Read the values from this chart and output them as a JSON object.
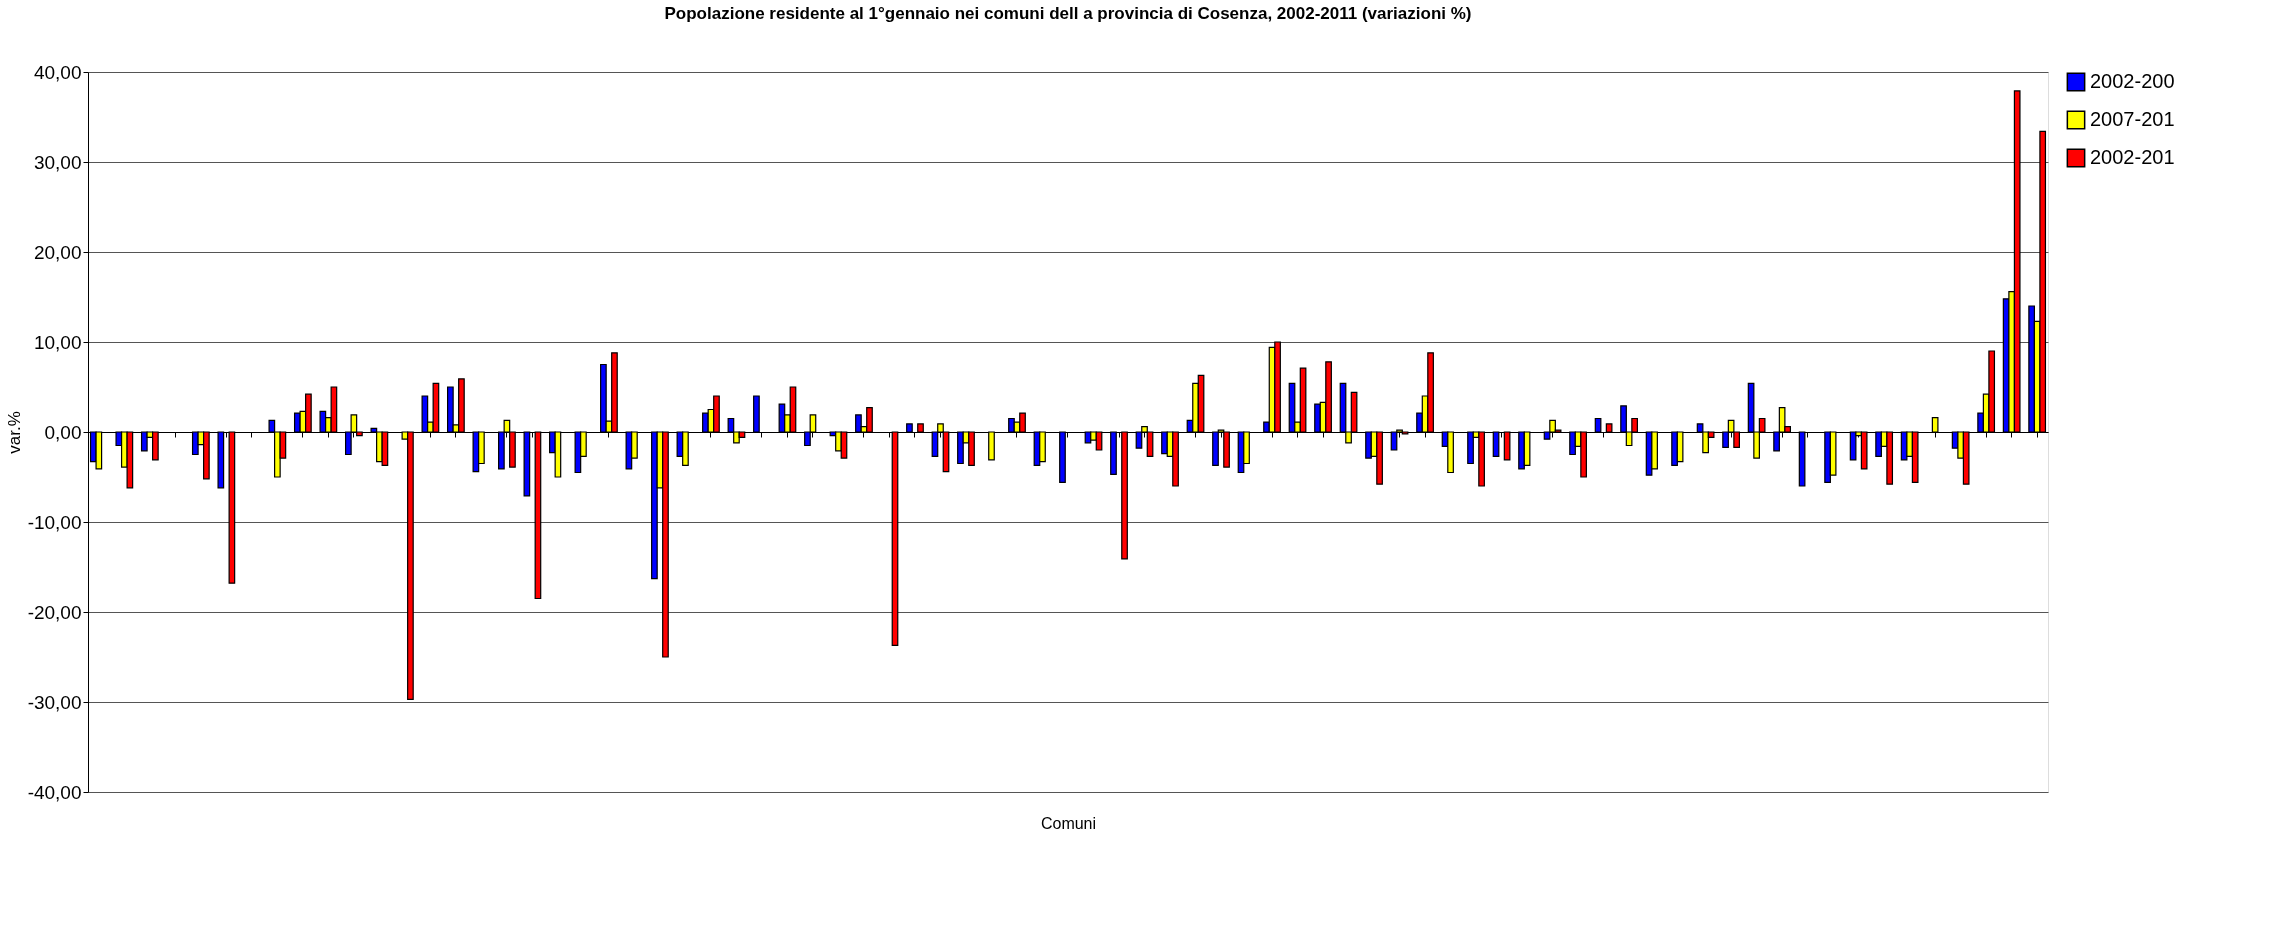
{
  "chart_data": {
    "type": "bar",
    "title": "Popolazione residente al 1°gennaio nei comuni dell a provincia di Cosenza, 2002-2011 (variazioni %)",
    "xlabel": "Comuni",
    "ylabel": "var.%",
    "categories": [
      null,
      null,
      null,
      null,
      null,
      null,
      null,
      null,
      null,
      null,
      null,
      null,
      null,
      null,
      null,
      null,
      null,
      null,
      null,
      null,
      null,
      null,
      null,
      null,
      null,
      null,
      null,
      null,
      null,
      null,
      null,
      null,
      null,
      null,
      null,
      null,
      null,
      null,
      null,
      null,
      null,
      null,
      null,
      null,
      null,
      null,
      null,
      null,
      null,
      null,
      null,
      null,
      null,
      null,
      null,
      null,
      null,
      null,
      null,
      null,
      null,
      null,
      null,
      null,
      null,
      null,
      null,
      null,
      null,
      null,
      null,
      null,
      null,
      null,
      null,
      null,
      null
    ],
    "series": [
      {
        "name": "2002-200",
        "color": "#0000ff",
        "values": [
          -3.3,
          -1.5,
          -2.1,
          null,
          -2.5,
          -6.2,
          null,
          1.3,
          2.1,
          2.3,
          -2.5,
          0.4,
          null,
          4.0,
          5.0,
          -4.4,
          -4.1,
          -7.1,
          -2.3,
          -4.5,
          7.5,
          -4.1,
          -16.3,
          -2.7,
          2.1,
          1.5,
          4.0,
          3.1,
          -1.5,
          -0.4,
          1.9,
          null,
          0.9,
          -2.7,
          -3.5,
          null,
          1.5,
          -3.7,
          -5.6,
          -1.2,
          -4.7,
          -1.8,
          -2.4,
          1.3,
          -3.7,
          -4.5,
          1.1,
          5.4,
          3.1,
          5.4,
          -2.9,
          -2.0,
          2.1,
          -1.6,
          -3.5,
          -2.7,
          -4.1,
          -0.8,
          -2.5,
          1.5,
          2.9,
          -4.8,
          -3.7,
          0.9,
          -1.7,
          5.4,
          -2.1,
          -6.0,
          -5.6,
          -3.1,
          -2.7,
          -3.1,
          null,
          -1.8,
          2.1,
          14.8,
          14.0
        ]
      },
      {
        "name": "2007-201",
        "color": "#ffff00",
        "values": [
          -4.1,
          -3.9,
          -0.6,
          null,
          -1.4,
          null,
          null,
          -5.0,
          2.3,
          1.6,
          1.9,
          -3.3,
          -0.8,
          1.1,
          0.8,
          -3.5,
          1.3,
          null,
          -5.0,
          -2.7,
          1.2,
          -2.9,
          -6.2,
          -3.7,
          2.5,
          -1.2,
          null,
          1.9,
          1.9,
          -2.1,
          0.6,
          null,
          null,
          0.9,
          -1.2,
          -3.1,
          1.1,
          -3.3,
          null,
          -0.9,
          null,
          0.6,
          -2.7,
          5.4,
          0.2,
          -3.5,
          9.4,
          1.1,
          3.3,
          -1.2,
          -2.7,
          0.2,
          4.0,
          -4.5,
          -0.6,
          null,
          -3.7,
          1.3,
          -1.6,
          null,
          -1.5,
          -4.1,
          -3.3,
          -2.3,
          1.3,
          -2.9,
          2.7,
          null,
          -4.8,
          -0.4,
          -1.6,
          -2.7,
          1.6,
          -2.9,
          4.2,
          15.6,
          12.3
        ]
      },
      {
        "name": "2002-201",
        "color": "#ff0000",
        "values": [
          null,
          -6.2,
          -3.1,
          null,
          -5.2,
          -16.8,
          null,
          -2.9,
          4.2,
          5.0,
          -0.4,
          -3.7,
          -29.7,
          5.4,
          5.9,
          null,
          -3.9,
          -18.5,
          null,
          null,
          8.8,
          null,
          -25.0,
          null,
          4.0,
          -0.6,
          null,
          5.0,
          null,
          -2.9,
          2.7,
          -23.7,
          0.9,
          -4.4,
          -3.7,
          null,
          2.1,
          null,
          null,
          -2.0,
          -14.1,
          -2.7,
          -6.0,
          6.3,
          -3.9,
          null,
          10.0,
          7.1,
          7.8,
          4.4,
          -5.8,
          -0.2,
          8.8,
          null,
          -6.0,
          -3.1,
          null,
          0.2,
          -5.0,
          0.9,
          1.5,
          null,
          null,
          -0.6,
          -1.7,
          1.5,
          0.6,
          null,
          null,
          -4.1,
          -5.8,
          -5.6,
          null,
          -5.8,
          9.0,
          37.9,
          33.4
        ]
      }
    ],
    "ylim": [
      -40,
      40
    ],
    "yticks": [
      {
        "value": -40,
        "label": "-40,00"
      },
      {
        "value": -30,
        "label": "-30,00"
      },
      {
        "value": -20,
        "label": "-20,00"
      },
      {
        "value": -10,
        "label": "-10,00"
      },
      {
        "value": 0,
        "label": "0,00"
      },
      {
        "value": 10,
        "label": "10,00"
      },
      {
        "value": 20,
        "label": "20,00"
      },
      {
        "value": 30,
        "label": "30,00"
      },
      {
        "value": 40,
        "label": "40,00"
      }
    ],
    "grid": "y",
    "legend": "right"
  }
}
